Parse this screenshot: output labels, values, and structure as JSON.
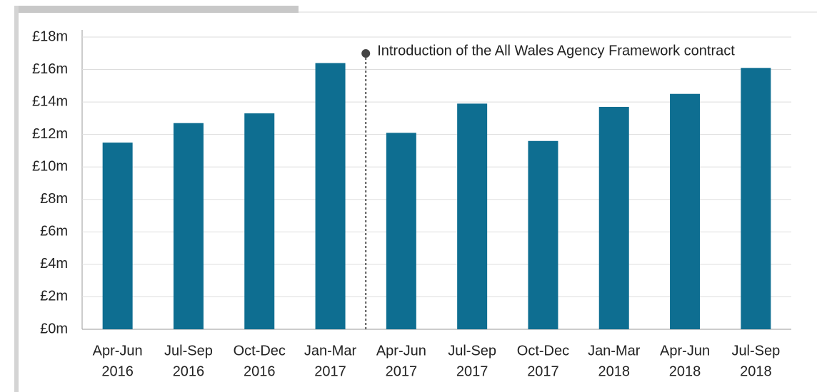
{
  "chart_data": {
    "type": "bar",
    "categories": [
      [
        "Apr-Jun",
        "2016"
      ],
      [
        "Jul-Sep",
        "2016"
      ],
      [
        "Oct-Dec",
        "2016"
      ],
      [
        "Jan-Mar",
        "2017"
      ],
      [
        "Apr-Jun",
        "2017"
      ],
      [
        "Jul-Sep",
        "2017"
      ],
      [
        "Oct-Dec",
        "2017"
      ],
      [
        "Jan-Mar",
        "2018"
      ],
      [
        "Apr-Jun",
        "2018"
      ],
      [
        "Jul-Sep",
        "2018"
      ]
    ],
    "values": [
      11.5,
      12.7,
      13.3,
      16.4,
      12.1,
      13.9,
      11.6,
      13.7,
      14.5,
      16.1
    ],
    "color": "#0e6e91",
    "ylim": [
      0,
      18
    ],
    "yticks": [
      {
        "value": 0,
        "label": "£0m"
      },
      {
        "value": 2,
        "label": "£2m"
      },
      {
        "value": 4,
        "label": "£4m"
      },
      {
        "value": 6,
        "label": "£6m"
      },
      {
        "value": 8,
        "label": "£8m"
      },
      {
        "value": 10,
        "label": "£10m"
      },
      {
        "value": 12,
        "label": "£12m"
      },
      {
        "value": 14,
        "label": "£14m"
      },
      {
        "value": 16,
        "label": "£16m"
      },
      {
        "value": 18,
        "label": "£18m"
      }
    ],
    "grid": true,
    "annotation": "Introduction of the All Wales Agency Framework contract"
  }
}
